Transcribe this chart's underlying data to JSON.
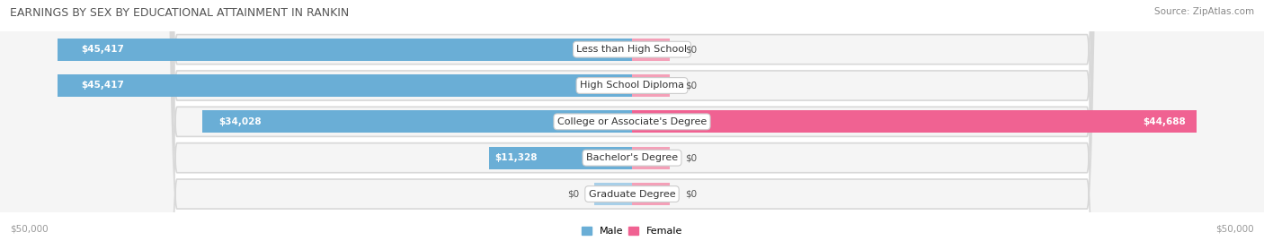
{
  "title": "EARNINGS BY SEX BY EDUCATIONAL ATTAINMENT IN RANKIN",
  "source": "Source: ZipAtlas.com",
  "categories": [
    "Less than High School",
    "High School Diploma",
    "College or Associate's Degree",
    "Bachelor's Degree",
    "Graduate Degree"
  ],
  "male_values": [
    45417,
    45417,
    34028,
    11328,
    0
  ],
  "female_values": [
    0,
    0,
    44688,
    0,
    0
  ],
  "male_stub": 3000,
  "female_stub": 3000,
  "male_color": "#6aaed6",
  "male_color_light": "#a8cfe8",
  "female_color": "#f06292",
  "female_color_light": "#f4a0b8",
  "axis_max": 50000,
  "bar_height": 0.62,
  "background_color": "#ffffff",
  "row_bg": "#f0f0f0",
  "row_border": "#e0e0e0",
  "label_dark": "#444444",
  "label_white": "#ffffff",
  "legend_male_color": "#6aaed6",
  "legend_female_color": "#f06292",
  "title_fontsize": 9,
  "source_fontsize": 7.5,
  "bar_label_fontsize": 7.5,
  "cat_label_fontsize": 8,
  "axis_label_fontsize": 7.5
}
